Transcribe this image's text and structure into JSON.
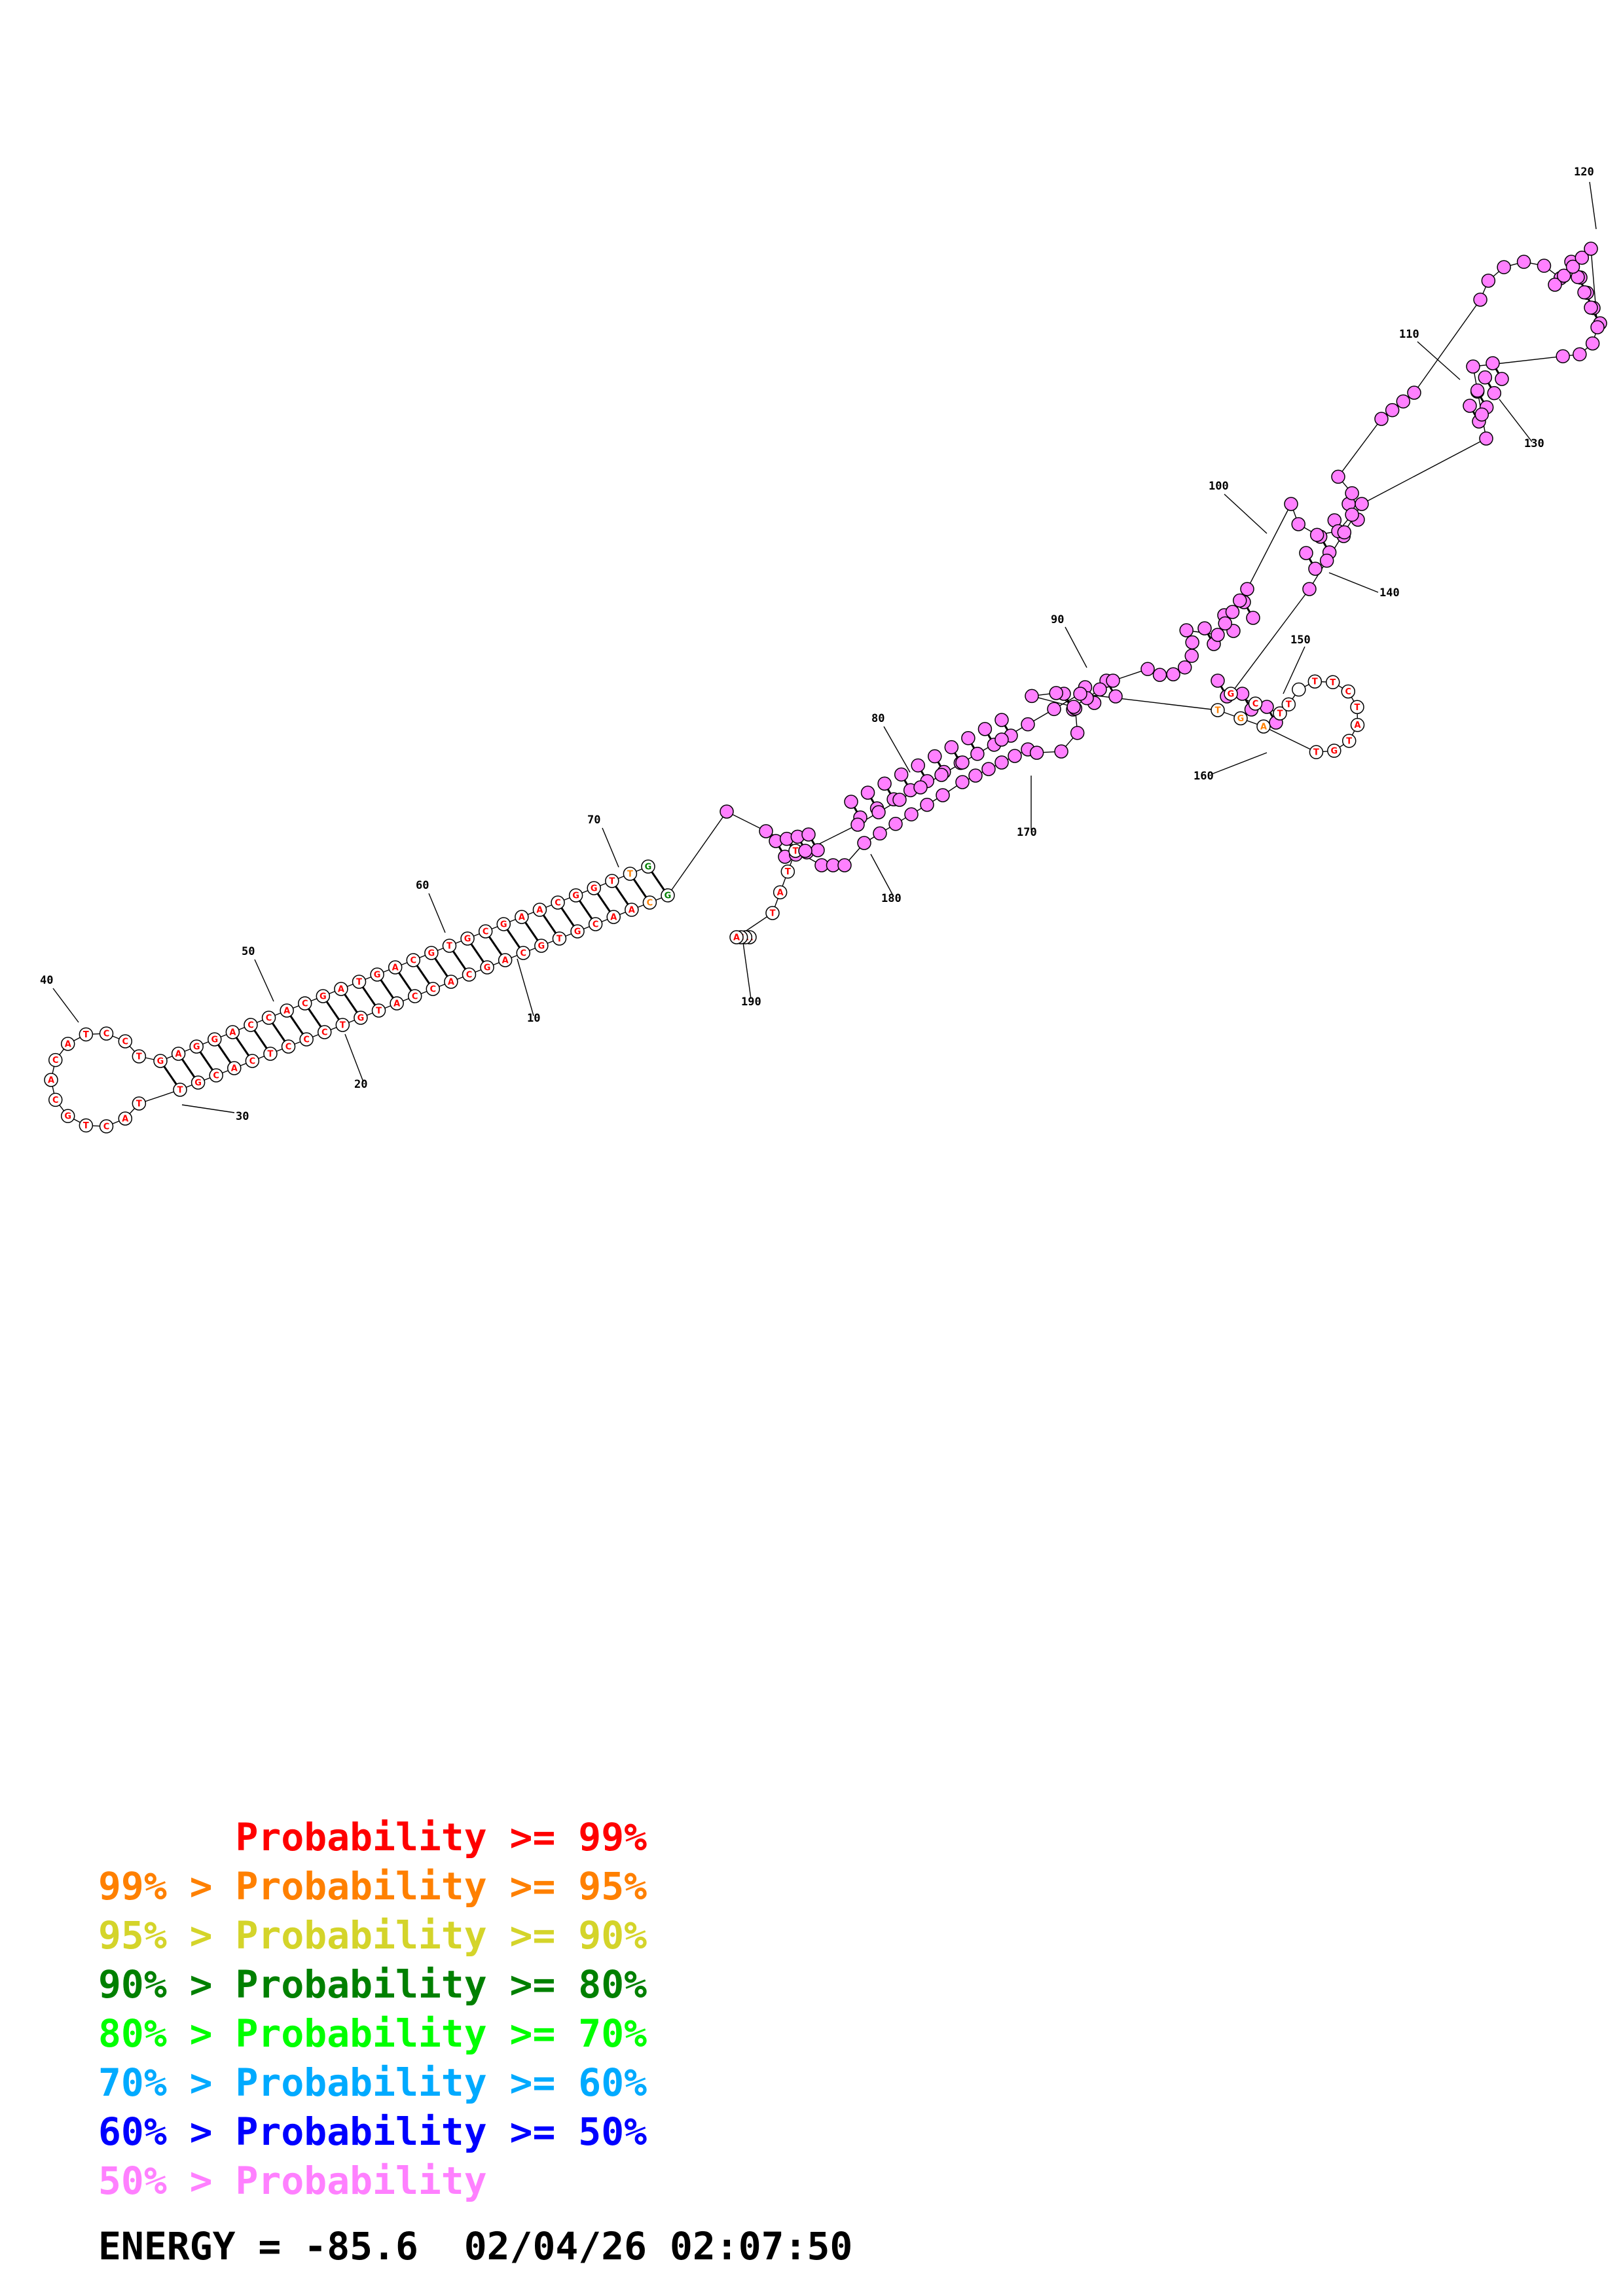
{
  "colors": {
    "p99": "#ff0000",
    "p95": "#ff8000",
    "p90": "#d4d42a",
    "p80": "#008000",
    "p70": "#00ff00",
    "p60": "#00aaff",
    "p50": "#0000ff",
    "plow": "#ff80ff",
    "pair_line": "#000000"
  },
  "position_labels": [
    "120",
    "110",
    "130",
    "100",
    "140",
    "90",
    "150",
    "160",
    "80",
    "170",
    "70",
    "180",
    "60",
    "190",
    "50",
    "10",
    "40",
    "20",
    "30"
  ],
  "legend": [
    {
      "prefix": "",
      "text": "Probability >= 99%",
      "color_key": "p99"
    },
    {
      "prefix": "99% > ",
      "text": "Probability >= 95%",
      "color_key": "p95"
    },
    {
      "prefix": "95% > ",
      "text": "Probability >= 90%",
      "color_key": "p90"
    },
    {
      "prefix": "90% > ",
      "text": "Probability >= 80%",
      "color_key": "p80"
    },
    {
      "prefix": "80% > ",
      "text": "Probability >= 70%",
      "color_key": "p70"
    },
    {
      "prefix": "70% > ",
      "text": "Probability >= 60%",
      "color_key": "p60"
    },
    {
      "prefix": "60% > ",
      "text": "Probability >= 50%",
      "color_key": "p50"
    },
    {
      "prefix": "50% > ",
      "text": "Probability",
      "color_key": "plow"
    }
  ],
  "footer": {
    "energy": "ENERGY = -85.6",
    "timestamp": "02/04/26 02:07:50"
  }
}
